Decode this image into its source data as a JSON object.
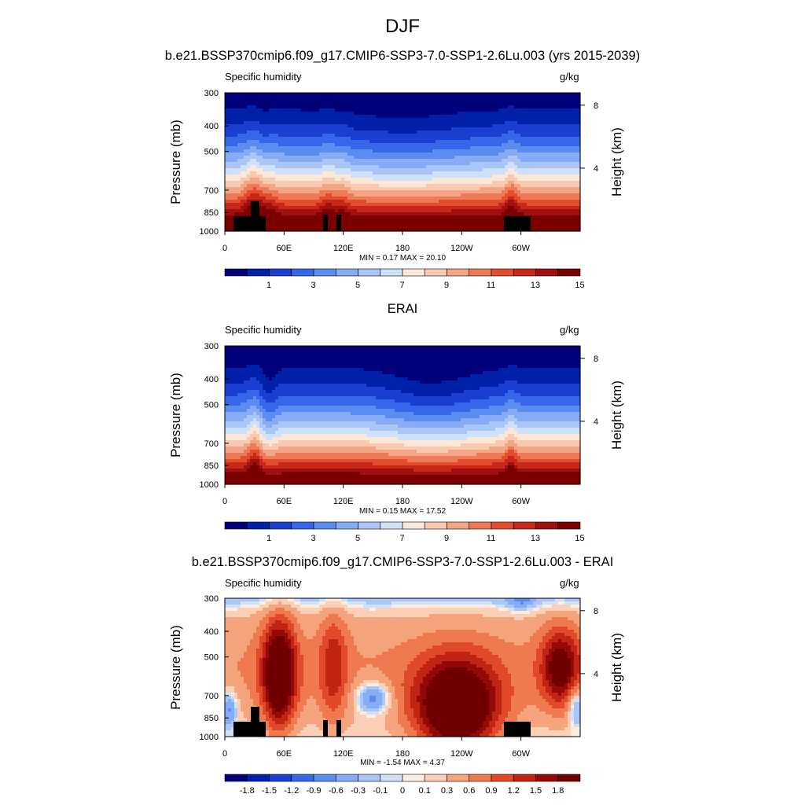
{
  "title": "DJF",
  "colors": {
    "humidity_scale": [
      "#00007a",
      "#0020a8",
      "#1a3fd0",
      "#3766e8",
      "#5b8cf0",
      "#85acf4",
      "#aac6f7",
      "#cfe0fa",
      "#fde8d8",
      "#f9c9b0",
      "#f4a585",
      "#ef7a58",
      "#e44c2e",
      "#c8281a",
      "#a01010",
      "#7a0000"
    ],
    "diff_scale": [
      "#00007a",
      "#0020a8",
      "#1a3fd0",
      "#3766e8",
      "#5b8cf0",
      "#85acf4",
      "#aac6f7",
      "#cfe0fa",
      "#fdece0",
      "#fbd0b6",
      "#f6a47e",
      "#f07a50",
      "#e0492a",
      "#c02412",
      "#950808",
      "#700000"
    ]
  },
  "chart_data": [
    {
      "type": "heatmap",
      "title": "b.e21.BSSP370cmip6.f09_g17.CMIP6-SSP3-7.0-SSP1-2.6Lu.003 (yrs 2015-2039)",
      "left_label": "Specific humidity",
      "right_label": "g/kg",
      "ylabel": "Pressure (mb)",
      "ylabel_right": "Height (km)",
      "x_ticks": [
        "0",
        "60E",
        "120E",
        "180",
        "120W",
        "60W"
      ],
      "y_ticks": [
        "300",
        "400",
        "500",
        "700",
        "850",
        "1000"
      ],
      "y_right_ticks": [
        "8",
        "4"
      ],
      "min_max": "MIN =   0.17  MAX =  20.10",
      "colorbar_labels": [
        "1",
        "3",
        "5",
        "7",
        "9",
        "11",
        "13",
        "15"
      ]
    },
    {
      "type": "heatmap",
      "title": "ERAI",
      "left_label": "Specific humidity",
      "right_label": "g/kg",
      "ylabel": "Pressure (mb)",
      "ylabel_right": "Height (km)",
      "x_ticks": [
        "0",
        "60E",
        "120E",
        "180",
        "120W",
        "60W"
      ],
      "y_ticks": [
        "300",
        "400",
        "500",
        "700",
        "850",
        "1000"
      ],
      "y_right_ticks": [
        "8",
        "4"
      ],
      "min_max": "MIN =   0.15  MAX =  17.52",
      "colorbar_labels": [
        "1",
        "3",
        "5",
        "7",
        "9",
        "11",
        "13",
        "15"
      ]
    },
    {
      "type": "heatmap",
      "title": "b.e21.BSSP370cmip6.f09_g17.CMIP6-SSP3-7.0-SSP1-2.6Lu.003 - ERAI",
      "left_label": "Specific humidity",
      "right_label": "g/kg",
      "ylabel": "Pressure (mb)",
      "ylabel_right": "Height (km)",
      "x_ticks": [
        "0",
        "60E",
        "120E",
        "180",
        "120W",
        "60W"
      ],
      "y_ticks": [
        "300",
        "400",
        "500",
        "700",
        "850",
        "1000"
      ],
      "y_right_ticks": [
        "8",
        "4"
      ],
      "min_max": "MIN =  -1.54  MAX =   4.37",
      "colorbar_labels": [
        "-1.8",
        "-1.5",
        "-1.2",
        "-0.9",
        "-0.6",
        "-0.3",
        "-0.1",
        "0",
        "0.1",
        "0.3",
        "0.6",
        "0.9",
        "1.2",
        "1.5",
        "1.8"
      ]
    }
  ]
}
